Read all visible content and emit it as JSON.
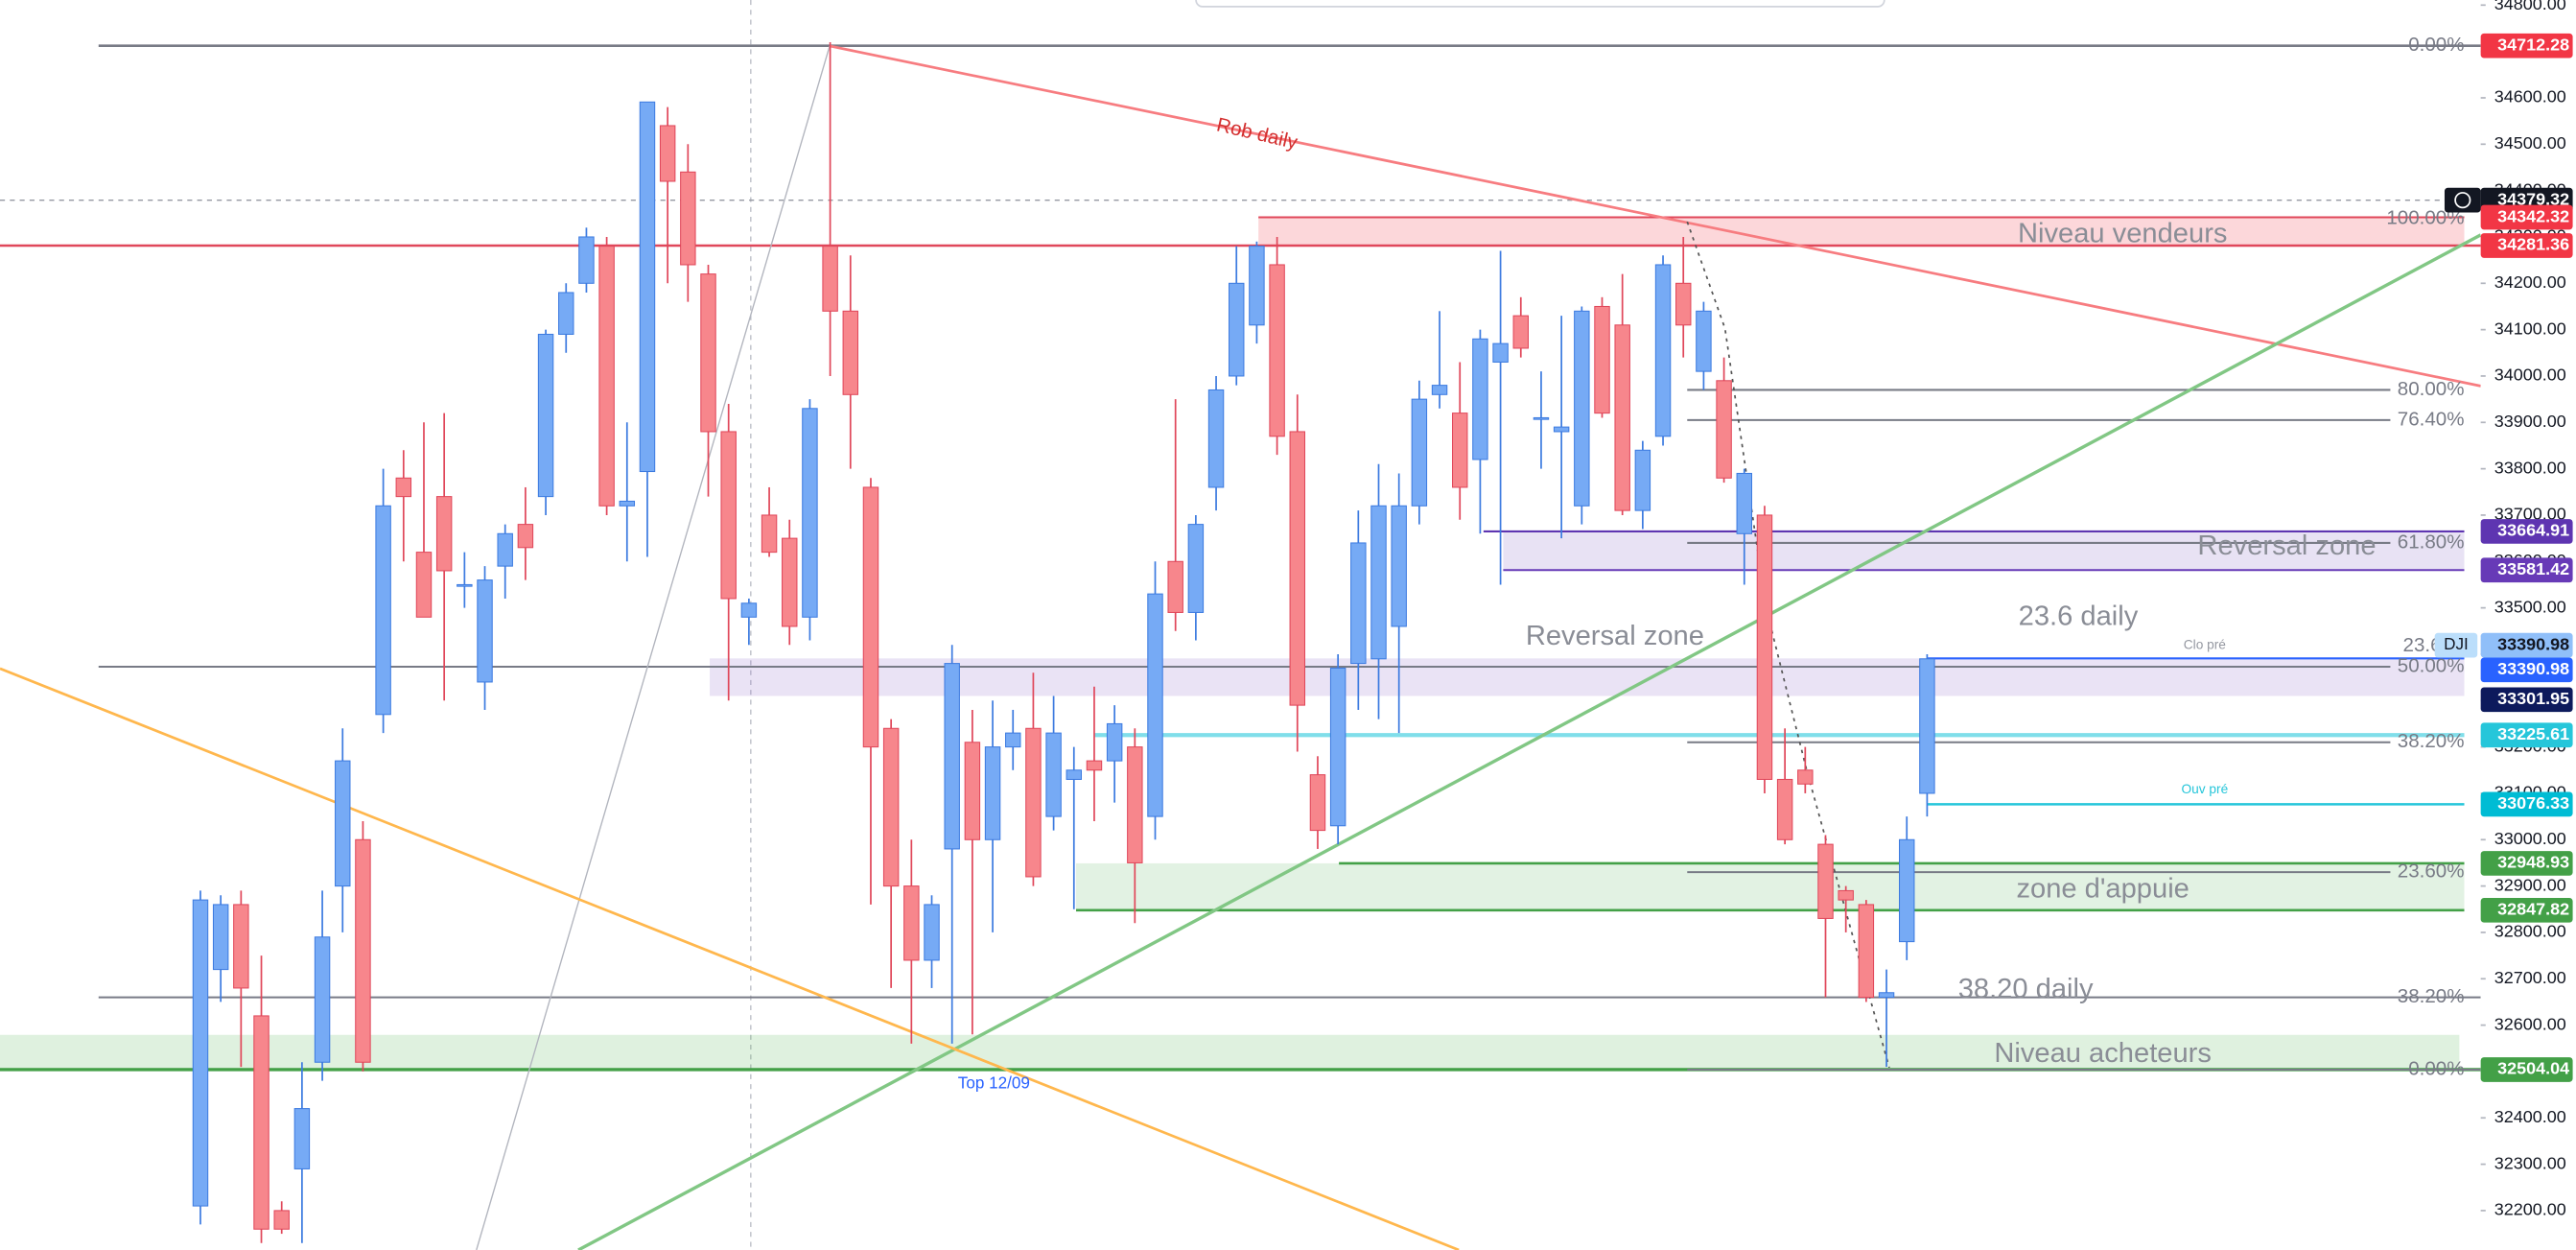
{
  "chart_data": {
    "type": "candlestick",
    "symbol": "DJI",
    "ylim": [
      32115,
      34811
    ],
    "yticks": [
      {
        "value": 32200,
        "label": "32200.00"
      },
      {
        "value": 32300,
        "label": "32300.00"
      },
      {
        "value": 32400,
        "label": "32400.00"
      },
      {
        "value": 32500,
        "label": "32500.00"
      },
      {
        "value": 32600,
        "label": "32600.00"
      },
      {
        "value": 32700,
        "label": "32700.00"
      },
      {
        "value": 32800,
        "label": "32800.00"
      },
      {
        "value": 32900,
        "label": "32900.00"
      },
      {
        "value": 33000,
        "label": "33000.00"
      },
      {
        "value": 33100,
        "label": "33100.00"
      },
      {
        "value": 33200,
        "label": "33200.00"
      },
      {
        "value": 33300,
        "label": "33300.00"
      },
      {
        "value": 33400,
        "label": "33400.00"
      },
      {
        "value": 33500,
        "label": "33500.00"
      },
      {
        "value": 33600,
        "label": "33600.00"
      },
      {
        "value": 33700,
        "label": "33700.00"
      },
      {
        "value": 33800,
        "label": "33800.00"
      },
      {
        "value": 33900,
        "label": "33900.00"
      },
      {
        "value": 34000,
        "label": "34000.00"
      },
      {
        "value": 34100,
        "label": "34100.00"
      },
      {
        "value": 34200,
        "label": "34200.00"
      },
      {
        "value": 34300,
        "label": "34300.00"
      },
      {
        "value": 34400,
        "label": "34400.00"
      },
      {
        "value": 34500,
        "label": "34500.00"
      },
      {
        "value": 34600,
        "label": "34600.00"
      },
      {
        "value": 34700,
        "label": "34700.00"
      },
      {
        "value": 34800,
        "label": "34800.00"
      }
    ],
    "up_color": "#76aaf5",
    "down_color": "#f7868c",
    "open": [
      32210,
      32720,
      32860,
      32620,
      32200,
      32290,
      32520,
      32900,
      33000,
      33270,
      33780,
      33620,
      33740,
      33550,
      33340,
      33590,
      33680,
      33740,
      34090,
      34200,
      34280,
      33720,
      33794,
      34540,
      34440,
      34220,
      33880,
      33480,
      33700,
      33650,
      33480,
      34280,
      34140,
      33760,
      33240,
      32900,
      32740,
      32980,
      33210,
      33000,
      33200,
      33240,
      33050,
      33130,
      33170,
      33170,
      33200,
      33050,
      33600,
      33490,
      33760,
      34000,
      34110,
      34240,
      33880,
      33140,
      33030,
      33380,
      33390,
      33460,
      33720,
      33960,
      33920,
      33820,
      34030,
      34130,
      33910,
      33880,
      33720,
      34150,
      34110,
      33710,
      33870,
      34200,
      34010,
      33990,
      33660,
      33700,
      33130,
      33150,
      32990,
      32890,
      32860,
      32660,
      32780,
      33100
    ],
    "high": [
      32890,
      32880,
      32890,
      32750,
      32220,
      32520,
      32890,
      33240,
      33040,
      33800,
      33840,
      33900,
      33920,
      33620,
      33590,
      33680,
      33760,
      34100,
      34200,
      34320,
      34300,
      33900,
      34591,
      34580,
      34500,
      34240,
      33940,
      33520,
      33760,
      33690,
      33950,
      34720,
      34260,
      33780,
      33260,
      33000,
      32880,
      33420,
      33280,
      33300,
      33280,
      33360,
      33310,
      33200,
      33330,
      33290,
      33240,
      33600,
      33950,
      33700,
      34000,
      34280,
      34290,
      34300,
      33960,
      33180,
      33400,
      33710,
      33810,
      33790,
      33990,
      34140,
      34030,
      34100,
      34270,
      34170,
      34010,
      34130,
      34150,
      34170,
      34220,
      33860,
      34260,
      34300,
      34160,
      34040,
      33800,
      33720,
      33240,
      33200,
      33010,
      32900,
      32870,
      32720,
      33050,
      33400
    ],
    "low": [
      32170,
      32650,
      32510,
      32130,
      32150,
      32130,
      32480,
      32800,
      32500,
      33230,
      33600,
      33480,
      33300,
      33500,
      33280,
      33520,
      33560,
      33700,
      34050,
      34180,
      33700,
      33600,
      33610,
      34200,
      34160,
      33740,
      33300,
      33420,
      33610,
      33420,
      33430,
      34000,
      33800,
      32860,
      32680,
      32560,
      32680,
      32560,
      32580,
      32800,
      33150,
      32900,
      33020,
      32850,
      33040,
      33080,
      32820,
      33000,
      33450,
      33430,
      33710,
      33980,
      34070,
      33830,
      33190,
      32980,
      32990,
      33280,
      33260,
      33230,
      33680,
      33930,
      33690,
      33660,
      33550,
      34040,
      33800,
      33650,
      33680,
      33910,
      33700,
      33670,
      33850,
      34040,
      33970,
      33770,
      33550,
      33100,
      32990,
      33100,
      32660,
      32800,
      32650,
      32510,
      32740,
      33050
    ],
    "close": [
      32870,
      32860,
      32680,
      32160,
      32160,
      32420,
      32790,
      33170,
      32520,
      33720,
      33740,
      33480,
      33580,
      33550,
      33560,
      33660,
      33630,
      34090,
      34180,
      34300,
      33720,
      33730,
      34591,
      34420,
      34240,
      33880,
      33520,
      33510,
      33620,
      33460,
      33930,
      34140,
      33960,
      33200,
      32900,
      32740,
      32860,
      33380,
      33000,
      33200,
      33230,
      32920,
      33230,
      33150,
      33150,
      33250,
      32950,
      33530,
      33490,
      33680,
      33970,
      34200,
      34280,
      33870,
      33290,
      33020,
      33370,
      33640,
      33720,
      33720,
      33950,
      33980,
      33760,
      34080,
      34070,
      34060,
      33910,
      33890,
      34140,
      33920,
      33710,
      33840,
      34240,
      34110,
      34140,
      33780,
      33790,
      33130,
      33000,
      33120,
      32830,
      32870,
      32660,
      32670,
      33000,
      33390
    ],
    "price_labels": [
      {
        "value": 34712.28,
        "color": "#f23645"
      },
      {
        "value": 34379.32,
        "color": "#131722"
      },
      {
        "value": 34342.32,
        "color": "#f23645"
      },
      {
        "value": 34281.36,
        "color": "#f23645"
      },
      {
        "value": 33664.91,
        "color": "#5e35b1"
      },
      {
        "value": 33581.42,
        "color": "#673ab7"
      },
      {
        "value": 33390.98,
        "color": "#90bff9"
      },
      {
        "value": 33390.98,
        "color": "#2962ff"
      },
      {
        "value": 33301.95,
        "color": "#0d1a5c"
      },
      {
        "value": 33225.61,
        "color": "#26c6da"
      },
      {
        "value": 33076.33,
        "color": "#00bcd4"
      },
      {
        "value": 32948.93,
        "color": "#43a047"
      },
      {
        "value": 32847.82,
        "color": "#43a047"
      },
      {
        "value": 32504.04,
        "color": "#43a047"
      }
    ],
    "fib_levels": [
      {
        "label": "0.00%",
        "value": 34712.28
      },
      {
        "label": "100.00%",
        "value": 34342.32
      },
      {
        "label": "80.00%",
        "value": 33970
      },
      {
        "label": "76.40%",
        "value": 33905
      },
      {
        "label": "61.80%",
        "value": 33640
      },
      {
        "label": "50.00%",
        "value": 33373
      },
      {
        "label": "23.6",
        "value": 33393
      },
      {
        "label": "38.20%",
        "value": 33210
      },
      {
        "label": "23.60%",
        "value": 32930
      },
      {
        "label": "38.20%",
        "value": 32660
      },
      {
        "label": "0.00%",
        "value": 32504.04
      }
    ],
    "zones": [
      {
        "low": 34281.36,
        "high": 34342.32,
        "color": "rgba(242,54,69,0.2)"
      },
      {
        "low": 33581.42,
        "high": 33664.91,
        "color": "rgba(103,58,183,0.15)"
      },
      {
        "low": 33310,
        "high": 33390.98,
        "color": "rgba(149,117,205,0.2)"
      },
      {
        "low": 32847.82,
        "high": 32948.93,
        "color": "rgba(76,175,80,0.16)"
      },
      {
        "low": 32504.04,
        "high": 32579,
        "color": "rgba(76,175,80,0.18)"
      }
    ],
    "annotations": [
      "Rob daily",
      "Niveau vendeurs",
      "Reversal zone",
      "Reversal zone",
      "23.6 daily",
      "zone d'appuie",
      "38.20 daily",
      "Niveau acheteurs",
      "Top 12/09",
      "Ouv pré",
      "Clo pré"
    ]
  }
}
